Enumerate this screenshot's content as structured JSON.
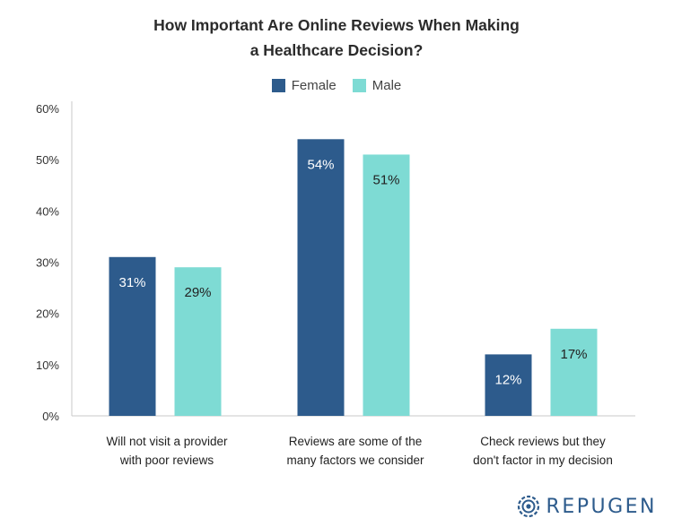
{
  "chart_data": {
    "type": "bar",
    "title": "How Important Are Online Reviews When Making a Healthcare Decision?",
    "title_lines": [
      "How Important Are Online Reviews When Making",
      "a Healthcare Decision?"
    ],
    "categories": [
      "Will not visit a provider with poor reviews",
      "Reviews are some of the many factors we consider",
      "Check reviews but they don't factor in my decision"
    ],
    "category_lines": [
      [
        "Will not visit a provider",
        "with poor reviews"
      ],
      [
        "Reviews are some of the",
        "many factors we consider"
      ],
      [
        "Check reviews but they",
        "don't factor in my decision"
      ]
    ],
    "series": [
      {
        "name": "Female",
        "values": [
          31,
          54,
          12
        ],
        "labels": [
          "31%",
          "54%",
          "12%"
        ],
        "color": "#2d5b8c",
        "label_color": "#ffffff"
      },
      {
        "name": "Male",
        "values": [
          29,
          51,
          17
        ],
        "labels": [
          "29%",
          "51%",
          "17%"
        ],
        "color": "#7edbd4",
        "label_color": "#222222"
      }
    ],
    "ylim": [
      0,
      60
    ],
    "yticks": [
      0,
      10,
      20,
      30,
      40,
      50,
      60
    ],
    "ytick_labels": [
      "0%",
      "10%",
      "20%",
      "30%",
      "40%",
      "50%",
      "60%"
    ],
    "xlabel": "",
    "ylabel": "",
    "grid": false,
    "legend_position": "top-center"
  },
  "brand": {
    "name": "REPUGEN",
    "color": "#2d5b8c",
    "icon": "repugen-logo-icon"
  }
}
